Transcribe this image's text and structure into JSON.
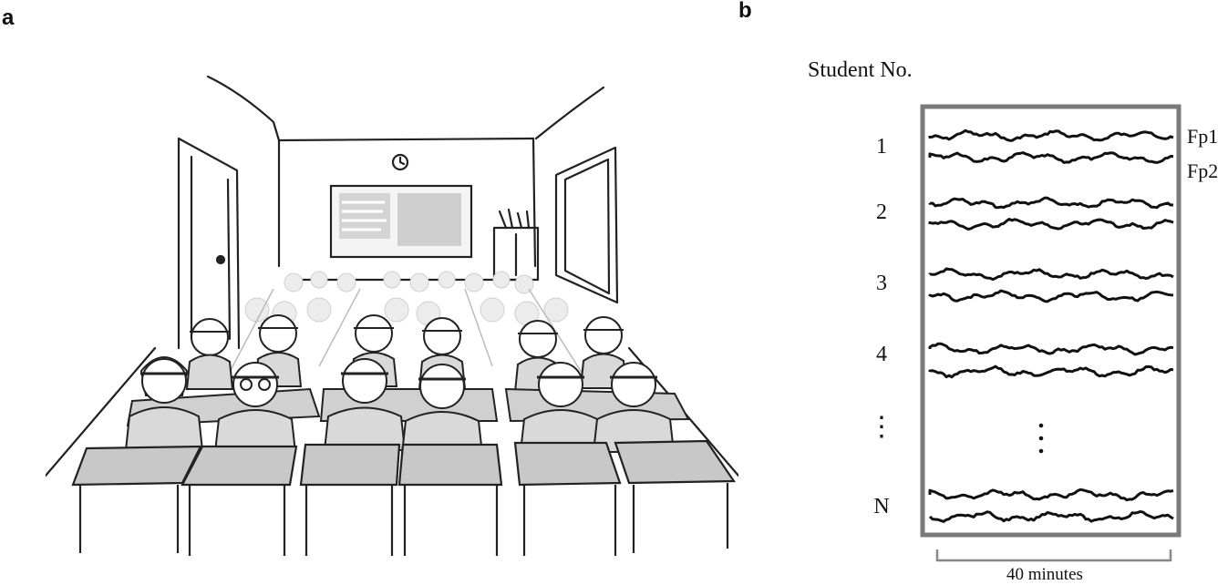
{
  "panels": {
    "a": "a",
    "b": "b"
  },
  "panel_b": {
    "title": "Student No.",
    "students": [
      "1",
      "2",
      "3",
      "4",
      "N"
    ],
    "ellipsis": "⋮",
    "channels": [
      "Fp1",
      "Fp2"
    ],
    "duration": "40 minutes"
  },
  "colors": {
    "frame": "#7a7a7a",
    "ink": "#111111",
    "board": "#cfcfcf"
  }
}
